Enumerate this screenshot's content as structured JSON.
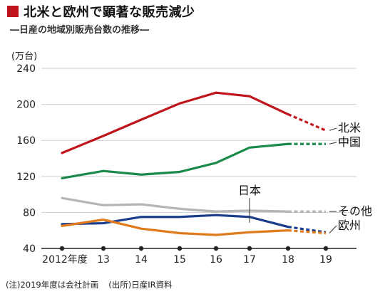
{
  "header": {
    "title": "北米と欧州で顕著な販売減少",
    "subtitle": "―日産の地域別販売台数の推移―"
  },
  "colors": {
    "accent": "#c0141c",
    "north_america": "#c0141c",
    "china": "#1a8a4a",
    "other": "#b5b5b5",
    "japan": "#1a3d8c",
    "europe": "#e07a1a"
  },
  "chart_data": {
    "type": "line",
    "unit_label": "(万台)",
    "x": [
      "2012年度",
      "13",
      "14",
      "15",
      "16",
      "17",
      "18",
      "19"
    ],
    "yticks": [
      40,
      80,
      120,
      160,
      200,
      240
    ],
    "ylim": [
      40,
      240
    ],
    "grid": true,
    "forecast_from_index": 6,
    "series": [
      {
        "name": "北米",
        "color": "#c0141c",
        "values": [
          146,
          165,
          183,
          201,
          213,
          209,
          189,
          171
        ]
      },
      {
        "name": "中国",
        "color": "#1a8a4a",
        "values": [
          118,
          126,
          122,
          125,
          135,
          152,
          156,
          156
        ]
      },
      {
        "name": "その他",
        "color": "#b5b5b5",
        "values": [
          96,
          88,
          89,
          84,
          81,
          82,
          81,
          81
        ]
      },
      {
        "name": "日本",
        "color": "#1a3d8c",
        "values": [
          67,
          68,
          75,
          75,
          77,
          75,
          64,
          58
        ]
      },
      {
        "name": "欧州",
        "color": "#e07a1a",
        "values": [
          65,
          72,
          62,
          57,
          55,
          58,
          60,
          57
        ]
      }
    ]
  },
  "footnote": {
    "note": "(注)2019年度は会社計画",
    "source": "(出所)日産IR資料"
  }
}
